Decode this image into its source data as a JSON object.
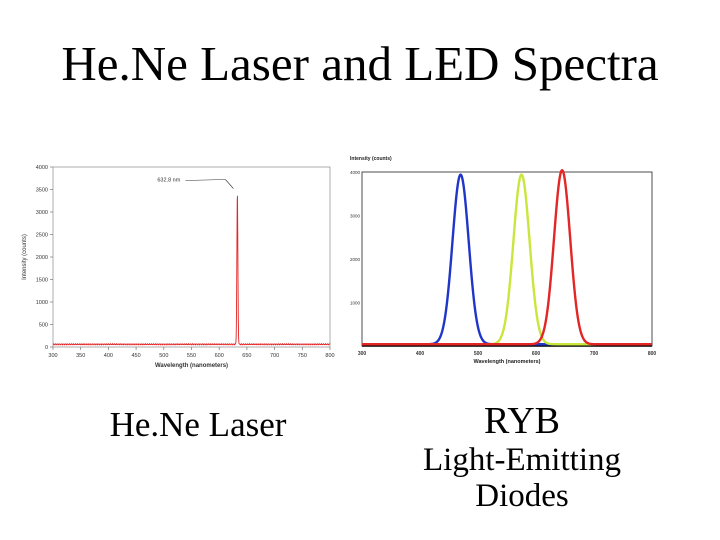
{
  "slide": {
    "title": "He.Ne Laser and LED Spectra",
    "caption_left": "He.Ne Laser",
    "caption_right": [
      "RYB",
      "Light-Emitting",
      "Diodes"
    ]
  },
  "chart_data": [
    {
      "type": "line",
      "xlabel": "Wavelength (nanometers)",
      "ylabel": "Intensity (counts)",
      "xlim": [
        300,
        800
      ],
      "ylim": [
        0,
        4000
      ],
      "xticks": [
        300,
        350,
        400,
        450,
        500,
        550,
        600,
        650,
        700,
        750,
        800
      ],
      "yticks": [
        0,
        500,
        1000,
        1500,
        2000,
        2500,
        3000,
        3500,
        4000
      ],
      "annotation": {
        "text": "632.8 nm",
        "x": 632.8,
        "y": 3500
      },
      "series": [
        {
          "color": "#e32626",
          "peaks": [
            {
              "center": 632.8,
              "height": 3380,
              "width": 0.9
            }
          ],
          "baseline": 60
        }
      ]
    },
    {
      "type": "line",
      "xlabel": "Wavelength (nanometers)",
      "ylabel": "Intensity (counts)",
      "xlim": [
        300,
        800
      ],
      "ylim": [
        0,
        4000
      ],
      "xticks": [
        300,
        400,
        500,
        600,
        700,
        800
      ],
      "xtick_labels": [
        "300",
        "400",
        "500",
        "600",
        "700",
        "800"
      ],
      "yticks": [
        1000,
        2000,
        3000,
        4000
      ],
      "ytick_labels": [
        "1000",
        "2000",
        "3000",
        "4000"
      ],
      "series": [
        {
          "color": "#2036c8",
          "peak": 470,
          "height": 3900,
          "width": 14
        },
        {
          "color": "#c8e63c",
          "peak": 575,
          "height": 3900,
          "width": 14
        },
        {
          "color": "#e32626",
          "peak": 645,
          "height": 4000,
          "width": 14
        }
      ]
    }
  ]
}
